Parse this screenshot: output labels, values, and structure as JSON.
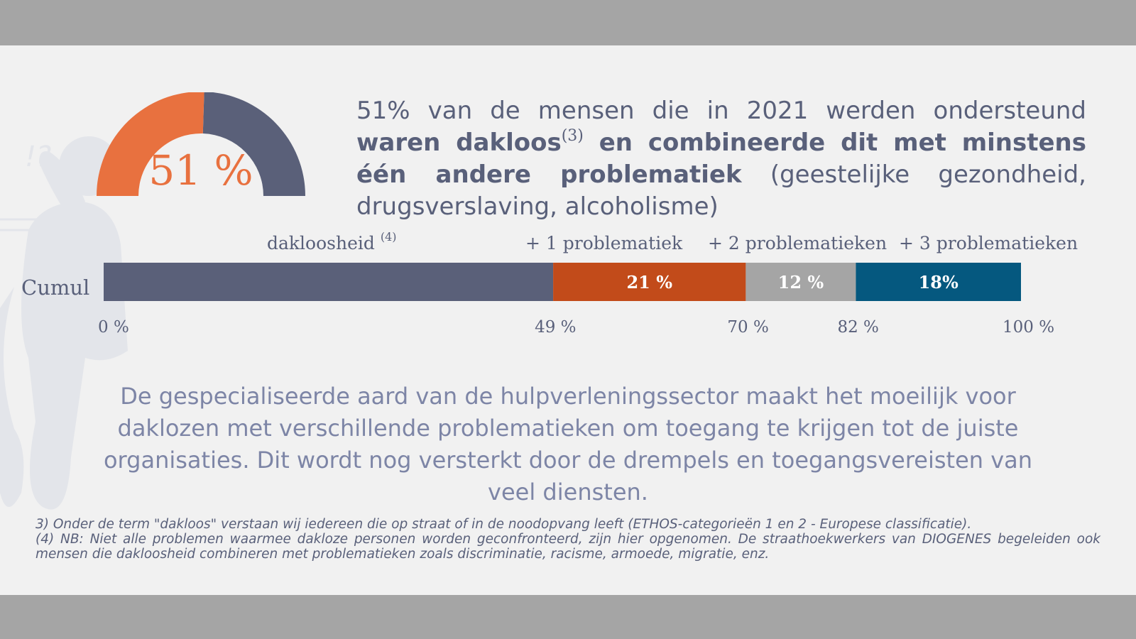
{
  "colors": {
    "background": "#f1f1f1",
    "band": "#a5a5a5",
    "text": "#59607a",
    "muted_text": "#7d85a6",
    "slate": "#5a6079",
    "orange_gauge": "#e8713f",
    "orange_bar": "#c24b1a",
    "gray_bar": "#a5a5a5",
    "blue_bar": "#05587f"
  },
  "gauge": {
    "label": "51 %",
    "value": 51
  },
  "headline": {
    "part1": "51% van de mensen die in 2021 werden ondersteund ",
    "bold1": "waren dakloos",
    "sup": "(3)",
    "bold2": " en combineerde dit met minstens één andere problematiek",
    "part2": " (geestelijke gezondheid, drugsverslaving, alcoholisme)"
  },
  "chart_data": {
    "type": "bar",
    "orientation": "horizontal-stacked",
    "row_label": "Cumul",
    "segments": [
      {
        "name": "dakloosheid",
        "name_sup": "(4)",
        "value": 49,
        "label": "",
        "color": "#5a6079"
      },
      {
        "name": "+ 1 problematiek",
        "value": 21,
        "label": "21 %",
        "color": "#c24b1a"
      },
      {
        "name": "+ 2 problematieken",
        "value": 12,
        "label": "12 %",
        "color": "#a5a5a5"
      },
      {
        "name": "+ 3 problematieken",
        "value": 18,
        "label": "18%",
        "color": "#05587f"
      }
    ],
    "ticks": [
      "0 %",
      "49 %",
      "70 %",
      "82 %",
      "100 %"
    ],
    "xlim": [
      0,
      100
    ]
  },
  "paragraph": "De gespecialiseerde aard van de hulpverleningssector maakt het moeilijk voor daklozen met verschillende problematieken om toegang te krijgen tot de juiste organisaties. Dit wordt nog versterkt door de drempels en toegangsvereisten van veel diensten.",
  "footnotes": {
    "note3": "3) Onder de term \"dakloos\" verstaan wij iedereen die op straat of in de noodopvang leeft (ETHOS-categorieën 1 en 2 - Europese classificatie).",
    "note4": "(4) NB: Niet alle problemen waarmee dakloze personen worden geconfronteerd, zijn hier opgenomen. De straathoekwerkers van DIOGENES begeleiden ook mensen die dakloosheid combineren met problematieken zoals discriminatie, racisme, armoede, migratie, enz."
  }
}
